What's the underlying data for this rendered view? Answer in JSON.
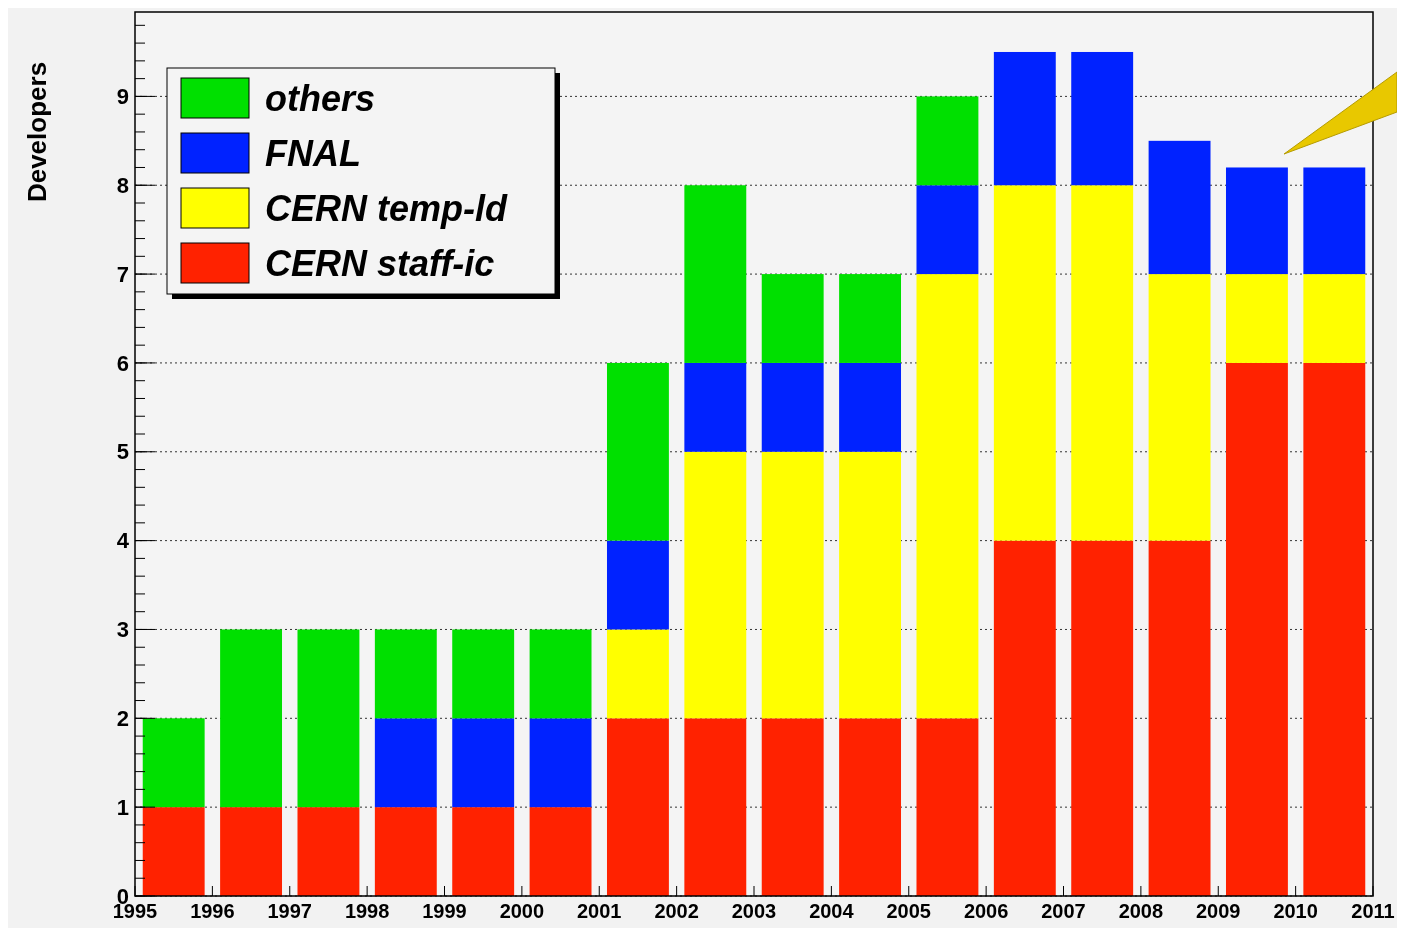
{
  "chart_data": {
    "type": "bar",
    "stacked": true,
    "ylabel": "Developers",
    "x": [
      1995.5,
      1996.5,
      1997.5,
      1998.5,
      1999.5,
      2000.5,
      2001.5,
      2002.5,
      2003.5,
      2004.5,
      2005.5,
      2006.5,
      2007.5,
      2008.5,
      2009.5,
      2010.5
    ],
    "series": [
      {
        "name": "CERN staff-ic",
        "color": "#ff2200",
        "values": [
          1,
          1,
          1,
          1,
          1,
          1,
          2,
          2,
          2,
          2,
          2,
          4,
          4,
          4,
          6,
          6
        ]
      },
      {
        "name": "CERN temp-ld",
        "color": "#ffff00",
        "values": [
          0,
          0,
          0,
          0,
          0,
          0,
          1,
          3,
          3,
          3,
          5,
          4,
          4,
          3,
          1,
          1
        ]
      },
      {
        "name": "FNAL",
        "color": "#0022ff",
        "values": [
          0,
          0,
          0,
          1,
          1,
          1,
          1,
          1,
          1,
          1,
          1,
          1.5,
          1.5,
          1.5,
          1.2,
          1.2
        ]
      },
      {
        "name": "others",
        "color": "#00e000",
        "values": [
          1,
          2,
          2,
          1,
          1,
          1,
          2,
          2,
          1,
          1,
          1,
          0,
          0,
          0,
          0,
          0
        ]
      }
    ],
    "xlim": [
      1995,
      2011
    ],
    "xticks": [
      1995,
      1996,
      1997,
      1998,
      1999,
      2000,
      2001,
      2002,
      2003,
      2004,
      2005,
      2006,
      2007,
      2008,
      2009,
      2010,
      2011
    ],
    "ylim": [
      0,
      9.95
    ],
    "yticks": [
      0,
      1,
      2,
      3,
      4,
      5,
      6,
      7,
      8,
      9
    ],
    "grid": "y",
    "legend": "top left"
  }
}
